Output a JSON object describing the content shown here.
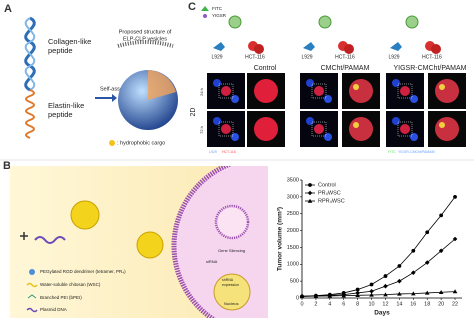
{
  "panel_a": {
    "label": "A",
    "collagen_label": [
      "Collagen-like",
      "peptide"
    ],
    "elastin_label": [
      "Elastin-like",
      "peptide"
    ],
    "structure_label": [
      "Proposed structure of",
      "ELP-CLP vesicles"
    ],
    "arrow_label": "Self-assembly",
    "cargo_label": ": hydrophobic cargo"
  },
  "panel_c": {
    "label": "C",
    "legend": [
      "FITC",
      "YIGSR"
    ],
    "cells": [
      "L929",
      "HCT-116"
    ],
    "columns": [
      "Control",
      "CMCht/PAMAM",
      "YIGSR-CMCht/PAMAM"
    ],
    "row_group": "2D",
    "rows": [
      "24 h",
      "72 h"
    ],
    "footnote_left": [
      "L929",
      "HCT-116"
    ],
    "footnote_right": [
      "FITC",
      "YIGSR-CMCht/PAMAM"
    ]
  },
  "panel_b": {
    "label": "B",
    "legend": [
      "PEGylated RGD dendrimer (tetramer, PR₄)",
      "Water-soluble chitosan (WSC)",
      "Branched PEI (bPEI)",
      "Plasmid DNA"
    ],
    "gene_silencing": "Gene Silencing",
    "sirna": "siRNA",
    "shrna": [
      "shRNA",
      "expression"
    ],
    "nucleus": "Nucleus"
  },
  "chart_data": {
    "type": "line",
    "x_label": "Days",
    "y_label": "Tumor volume (mm³)",
    "x": [
      0,
      2,
      4,
      6,
      8,
      10,
      12,
      14,
      16,
      18,
      20,
      22
    ],
    "series": [
      {
        "name": "Control",
        "color": "#000000",
        "marker": "circle",
        "values": [
          50,
          70,
          100,
          150,
          250,
          400,
          650,
          950,
          1400,
          1950,
          2450,
          3000
        ]
      },
      {
        "name": "PR₄WSC",
        "color": "#000000",
        "marker": "diamond",
        "values": [
          50,
          60,
          80,
          100,
          150,
          200,
          350,
          500,
          750,
          1050,
          1400,
          1750
        ]
      },
      {
        "name": "RPR₄WSC",
        "color": "#000000",
        "marker": "triangle",
        "values": [
          50,
          55,
          60,
          70,
          80,
          90,
          100,
          120,
          130,
          150,
          170,
          190
        ]
      }
    ],
    "xlim": [
      0,
      23
    ],
    "xticks": [
      0,
      2,
      4,
      6,
      8,
      10,
      12,
      14,
      16,
      18,
      20,
      22
    ],
    "ylim": [
      0,
      3500
    ],
    "yticks": [
      0,
      500,
      1000,
      1500,
      2000,
      2500,
      3000,
      3500
    ],
    "legend": "upper-left"
  }
}
